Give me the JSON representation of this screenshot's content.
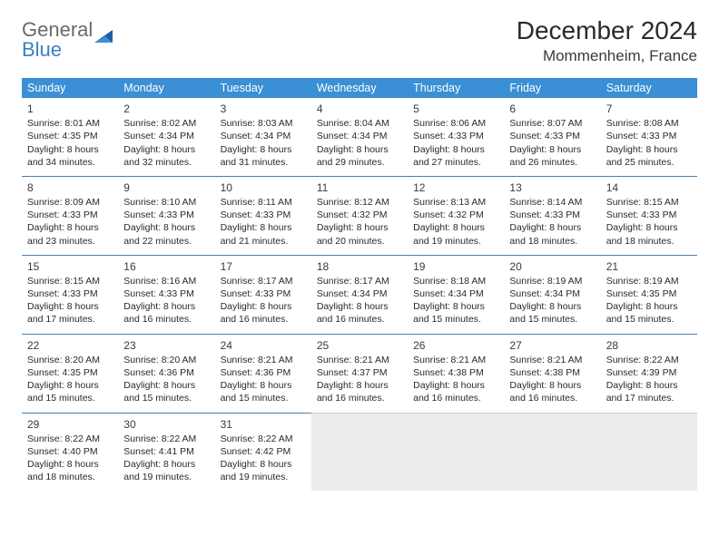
{
  "logo": {
    "line1": "General",
    "line2": "Blue"
  },
  "title": "December 2024",
  "location": "Mommenheim, France",
  "colors": {
    "header_bg": "#3b8fd4",
    "header_text": "#ffffff",
    "cell_border": "#4b7eb0",
    "empty_bg": "#ececec",
    "logo_gray": "#6a6a6a",
    "logo_blue": "#3b7fc4"
  },
  "day_headers": [
    "Sunday",
    "Monday",
    "Tuesday",
    "Wednesday",
    "Thursday",
    "Friday",
    "Saturday"
  ],
  "weeks": [
    [
      {
        "n": 1,
        "sr": "Sunrise: 8:01 AM",
        "ss": "Sunset: 4:35 PM",
        "d1": "Daylight: 8 hours",
        "d2": "and 34 minutes."
      },
      {
        "n": 2,
        "sr": "Sunrise: 8:02 AM",
        "ss": "Sunset: 4:34 PM",
        "d1": "Daylight: 8 hours",
        "d2": "and 32 minutes."
      },
      {
        "n": 3,
        "sr": "Sunrise: 8:03 AM",
        "ss": "Sunset: 4:34 PM",
        "d1": "Daylight: 8 hours",
        "d2": "and 31 minutes."
      },
      {
        "n": 4,
        "sr": "Sunrise: 8:04 AM",
        "ss": "Sunset: 4:34 PM",
        "d1": "Daylight: 8 hours",
        "d2": "and 29 minutes."
      },
      {
        "n": 5,
        "sr": "Sunrise: 8:06 AM",
        "ss": "Sunset: 4:33 PM",
        "d1": "Daylight: 8 hours",
        "d2": "and 27 minutes."
      },
      {
        "n": 6,
        "sr": "Sunrise: 8:07 AM",
        "ss": "Sunset: 4:33 PM",
        "d1": "Daylight: 8 hours",
        "d2": "and 26 minutes."
      },
      {
        "n": 7,
        "sr": "Sunrise: 8:08 AM",
        "ss": "Sunset: 4:33 PM",
        "d1": "Daylight: 8 hours",
        "d2": "and 25 minutes."
      }
    ],
    [
      {
        "n": 8,
        "sr": "Sunrise: 8:09 AM",
        "ss": "Sunset: 4:33 PM",
        "d1": "Daylight: 8 hours",
        "d2": "and 23 minutes."
      },
      {
        "n": 9,
        "sr": "Sunrise: 8:10 AM",
        "ss": "Sunset: 4:33 PM",
        "d1": "Daylight: 8 hours",
        "d2": "and 22 minutes."
      },
      {
        "n": 10,
        "sr": "Sunrise: 8:11 AM",
        "ss": "Sunset: 4:33 PM",
        "d1": "Daylight: 8 hours",
        "d2": "and 21 minutes."
      },
      {
        "n": 11,
        "sr": "Sunrise: 8:12 AM",
        "ss": "Sunset: 4:32 PM",
        "d1": "Daylight: 8 hours",
        "d2": "and 20 minutes."
      },
      {
        "n": 12,
        "sr": "Sunrise: 8:13 AM",
        "ss": "Sunset: 4:32 PM",
        "d1": "Daylight: 8 hours",
        "d2": "and 19 minutes."
      },
      {
        "n": 13,
        "sr": "Sunrise: 8:14 AM",
        "ss": "Sunset: 4:33 PM",
        "d1": "Daylight: 8 hours",
        "d2": "and 18 minutes."
      },
      {
        "n": 14,
        "sr": "Sunrise: 8:15 AM",
        "ss": "Sunset: 4:33 PM",
        "d1": "Daylight: 8 hours",
        "d2": "and 18 minutes."
      }
    ],
    [
      {
        "n": 15,
        "sr": "Sunrise: 8:15 AM",
        "ss": "Sunset: 4:33 PM",
        "d1": "Daylight: 8 hours",
        "d2": "and 17 minutes."
      },
      {
        "n": 16,
        "sr": "Sunrise: 8:16 AM",
        "ss": "Sunset: 4:33 PM",
        "d1": "Daylight: 8 hours",
        "d2": "and 16 minutes."
      },
      {
        "n": 17,
        "sr": "Sunrise: 8:17 AM",
        "ss": "Sunset: 4:33 PM",
        "d1": "Daylight: 8 hours",
        "d2": "and 16 minutes."
      },
      {
        "n": 18,
        "sr": "Sunrise: 8:17 AM",
        "ss": "Sunset: 4:34 PM",
        "d1": "Daylight: 8 hours",
        "d2": "and 16 minutes."
      },
      {
        "n": 19,
        "sr": "Sunrise: 8:18 AM",
        "ss": "Sunset: 4:34 PM",
        "d1": "Daylight: 8 hours",
        "d2": "and 15 minutes."
      },
      {
        "n": 20,
        "sr": "Sunrise: 8:19 AM",
        "ss": "Sunset: 4:34 PM",
        "d1": "Daylight: 8 hours",
        "d2": "and 15 minutes."
      },
      {
        "n": 21,
        "sr": "Sunrise: 8:19 AM",
        "ss": "Sunset: 4:35 PM",
        "d1": "Daylight: 8 hours",
        "d2": "and 15 minutes."
      }
    ],
    [
      {
        "n": 22,
        "sr": "Sunrise: 8:20 AM",
        "ss": "Sunset: 4:35 PM",
        "d1": "Daylight: 8 hours",
        "d2": "and 15 minutes."
      },
      {
        "n": 23,
        "sr": "Sunrise: 8:20 AM",
        "ss": "Sunset: 4:36 PM",
        "d1": "Daylight: 8 hours",
        "d2": "and 15 minutes."
      },
      {
        "n": 24,
        "sr": "Sunrise: 8:21 AM",
        "ss": "Sunset: 4:36 PM",
        "d1": "Daylight: 8 hours",
        "d2": "and 15 minutes."
      },
      {
        "n": 25,
        "sr": "Sunrise: 8:21 AM",
        "ss": "Sunset: 4:37 PM",
        "d1": "Daylight: 8 hours",
        "d2": "and 16 minutes."
      },
      {
        "n": 26,
        "sr": "Sunrise: 8:21 AM",
        "ss": "Sunset: 4:38 PM",
        "d1": "Daylight: 8 hours",
        "d2": "and 16 minutes."
      },
      {
        "n": 27,
        "sr": "Sunrise: 8:21 AM",
        "ss": "Sunset: 4:38 PM",
        "d1": "Daylight: 8 hours",
        "d2": "and 16 minutes."
      },
      {
        "n": 28,
        "sr": "Sunrise: 8:22 AM",
        "ss": "Sunset: 4:39 PM",
        "d1": "Daylight: 8 hours",
        "d2": "and 17 minutes."
      }
    ],
    [
      {
        "n": 29,
        "sr": "Sunrise: 8:22 AM",
        "ss": "Sunset: 4:40 PM",
        "d1": "Daylight: 8 hours",
        "d2": "and 18 minutes."
      },
      {
        "n": 30,
        "sr": "Sunrise: 8:22 AM",
        "ss": "Sunset: 4:41 PM",
        "d1": "Daylight: 8 hours",
        "d2": "and 19 minutes."
      },
      {
        "n": 31,
        "sr": "Sunrise: 8:22 AM",
        "ss": "Sunset: 4:42 PM",
        "d1": "Daylight: 8 hours",
        "d2": "and 19 minutes."
      },
      null,
      null,
      null,
      null
    ]
  ]
}
